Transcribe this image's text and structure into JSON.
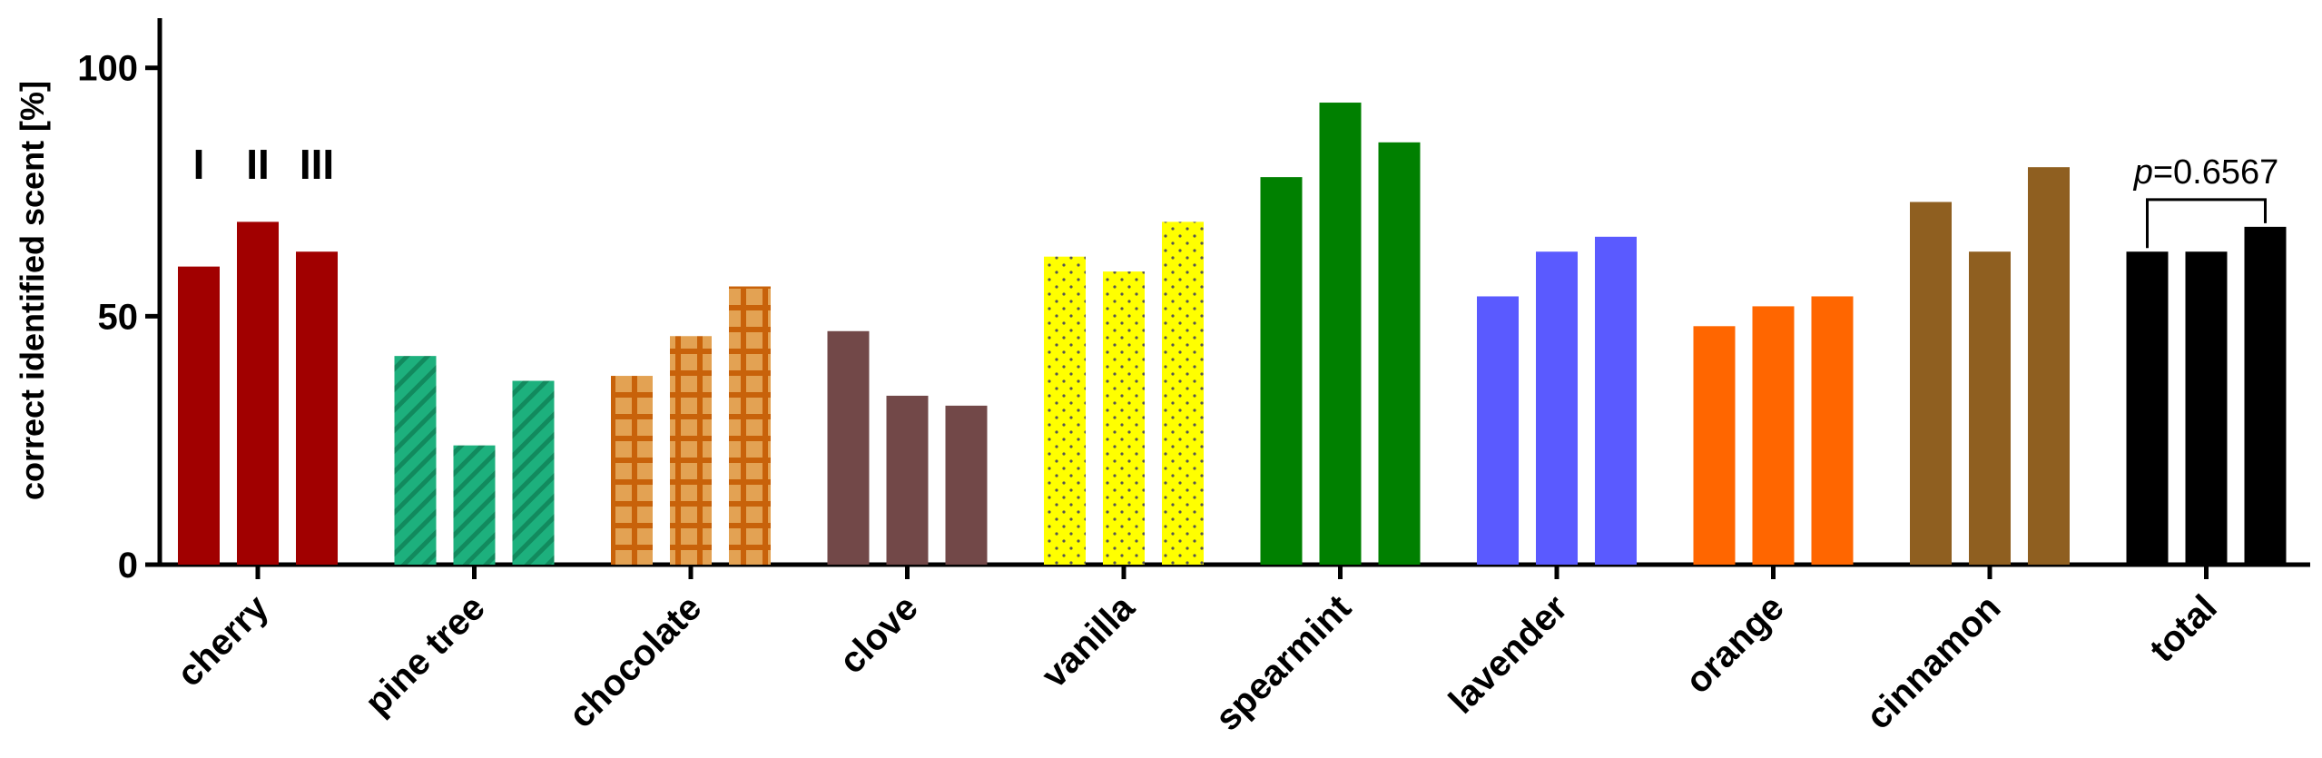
{
  "chart_data": {
    "type": "bar",
    "y_label": "correct identified scent [%]",
    "categories": [
      "cherry",
      "pine tree",
      "chocolate",
      "clove",
      "vanilla",
      "spearmint",
      "lavender",
      "orange",
      "cinnamon",
      "total"
    ],
    "colors": [
      "#a10000",
      "#1db07d",
      "#d9902e",
      "#724848",
      "#ffff00",
      "#008000",
      "#5a5aff",
      "#ff6600",
      "#8f5f20",
      "#000000"
    ],
    "patterns": [
      null,
      "stripes",
      "checks",
      null,
      "dots",
      null,
      null,
      null,
      null,
      null
    ],
    "series": [
      {
        "name": "I",
        "values": [
          60,
          42,
          38,
          47,
          62,
          78,
          54,
          48,
          73,
          63
        ]
      },
      {
        "name": "II",
        "values": [
          69,
          24,
          46,
          34,
          59,
          93,
          63,
          52,
          63,
          63
        ]
      },
      {
        "name": "III",
        "values": [
          63,
          37,
          56,
          32,
          69,
          85,
          66,
          54,
          80,
          68
        ]
      }
    ],
    "annotation": {
      "italic": "p",
      "text": "=0.6567"
    },
    "ylim": [
      0,
      110
    ],
    "yticks": [
      0,
      50,
      100
    ]
  }
}
